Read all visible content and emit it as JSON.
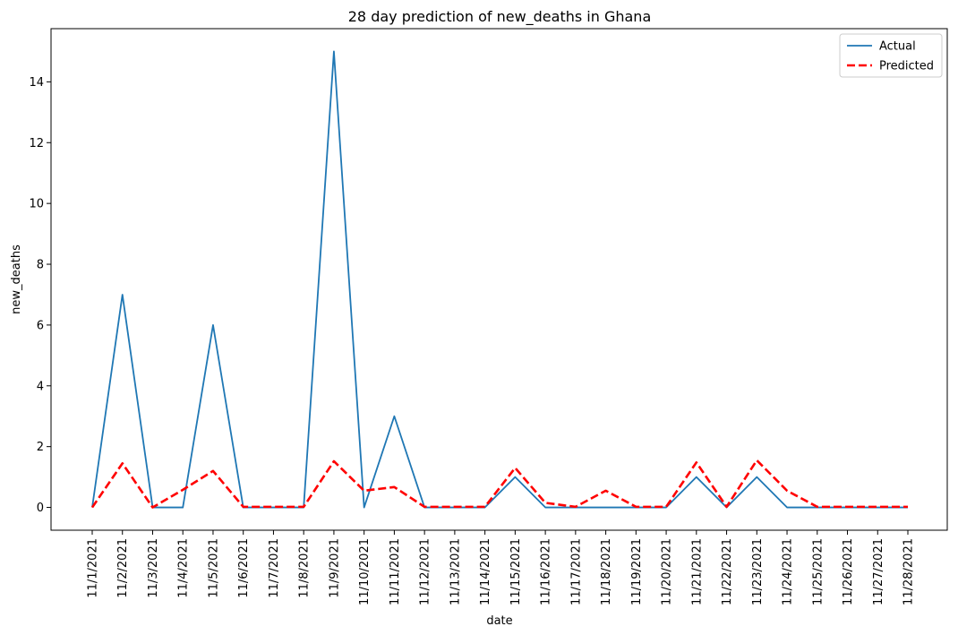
{
  "chart_data": {
    "type": "line",
    "title": "28 day prediction of new_deaths in Ghana",
    "xlabel": "date",
    "ylabel": "new_deaths",
    "x": [
      "11/1/2021",
      "11/2/2021",
      "11/3/2021",
      "11/4/2021",
      "11/5/2021",
      "11/6/2021",
      "11/7/2021",
      "11/8/2021",
      "11/9/2021",
      "11/10/2021",
      "11/11/2021",
      "11/12/2021",
      "11/13/2021",
      "11/14/2021",
      "11/15/2021",
      "11/16/2021",
      "11/17/2021",
      "11/18/2021",
      "11/19/2021",
      "11/20/2021",
      "11/21/2021",
      "11/22/2021",
      "11/23/2021",
      "11/24/2021",
      "11/25/2021",
      "11/26/2021",
      "11/27/2021",
      "11/28/2021"
    ],
    "ylim": [
      -0.75,
      15.75
    ],
    "yticks": [
      0,
      2,
      4,
      6,
      8,
      10,
      12,
      14
    ],
    "grid": false,
    "legend_position": "top-right",
    "series": [
      {
        "name": "Actual",
        "color": "#1f77b4",
        "style": "solid",
        "values": [
          0,
          7,
          0,
          0,
          6,
          0,
          0,
          0,
          15,
          0,
          3,
          0,
          0,
          0,
          1,
          0,
          0,
          0,
          0,
          0,
          1,
          0,
          1,
          0,
          0,
          0,
          0,
          0
        ]
      },
      {
        "name": "Predicted",
        "color": "#ff0000",
        "style": "dashed",
        "values": [
          0,
          1.45,
          0,
          0.58,
          1.2,
          0.02,
          0.02,
          0.02,
          1.52,
          0.55,
          0.67,
          0.02,
          0.02,
          0.02,
          1.3,
          0.15,
          0.02,
          0.55,
          0.02,
          0.02,
          1.48,
          0.02,
          1.55,
          0.55,
          0.02,
          0.02,
          0.02,
          0.02
        ]
      }
    ]
  }
}
